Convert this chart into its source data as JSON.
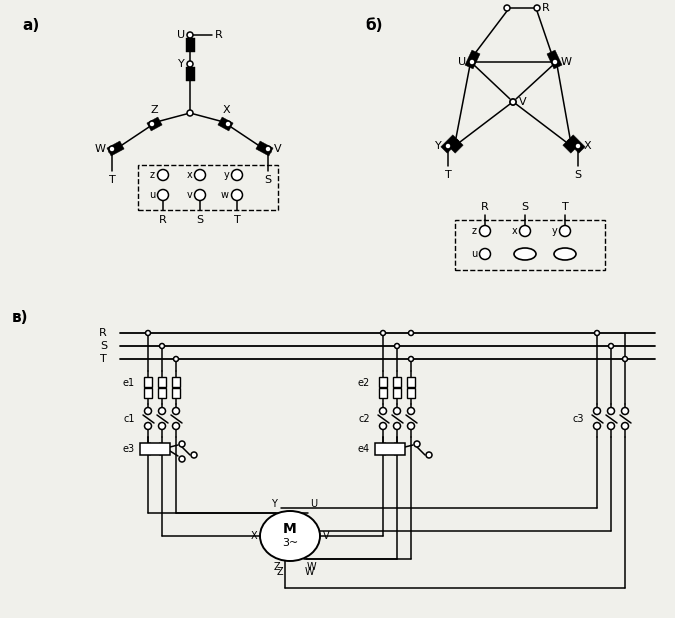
{
  "bg": "#f0f0eb",
  "lc": "#000000",
  "la": "а)",
  "lb": "б)",
  "lv": "в)"
}
